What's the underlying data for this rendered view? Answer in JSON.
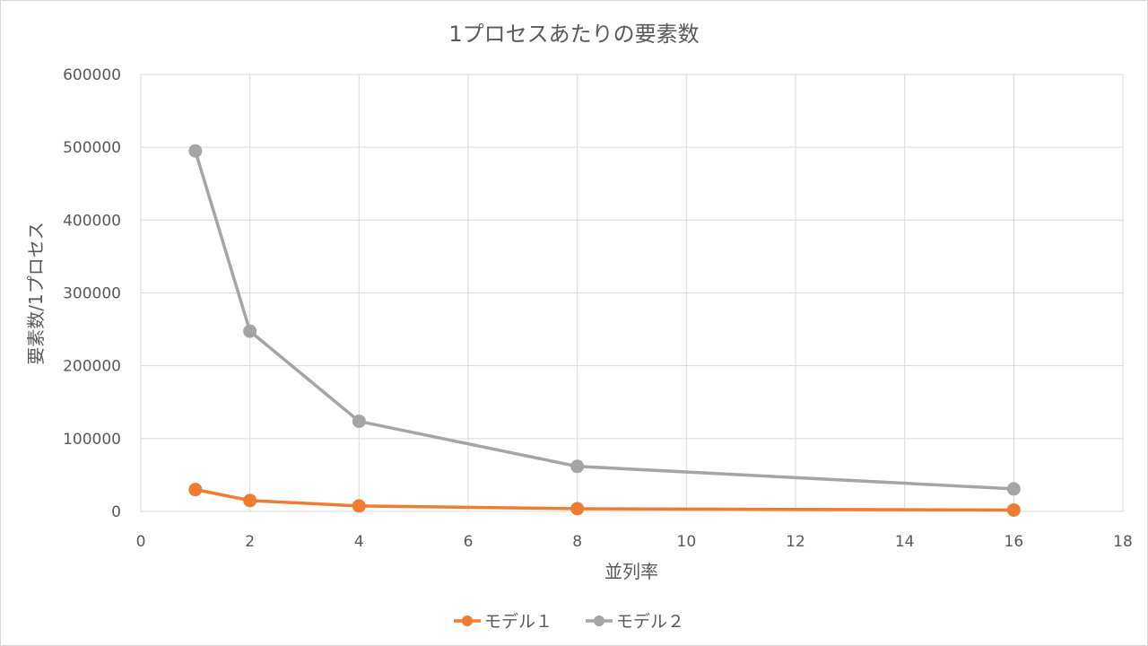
{
  "chart_data": {
    "type": "scatter",
    "title": "1プロセスあたりの要素数",
    "xlabel": "並列率",
    "ylabel": "要素数/1プロセス",
    "xlim": [
      0,
      18
    ],
    "ylim": [
      0,
      600000
    ],
    "x_ticks": [
      0,
      2,
      4,
      6,
      8,
      10,
      12,
      14,
      16,
      18
    ],
    "y_ticks": [
      0,
      100000,
      200000,
      300000,
      400000,
      500000,
      600000
    ],
    "grid": true,
    "legend_position": "bottom",
    "x": [
      1,
      2,
      4,
      8,
      16
    ],
    "series": [
      {
        "name": "モデル１",
        "color": "#ed7d31",
        "values": [
          30000,
          15000,
          7500,
          3750,
          1875
        ]
      },
      {
        "name": "モデル２",
        "color": "#a5a5a5",
        "values": [
          495000,
          247500,
          123750,
          61875,
          30938
        ]
      }
    ]
  },
  "colors": {
    "grid": "#d9d9d9",
    "text": "#595959",
    "background": "#ffffff"
  }
}
